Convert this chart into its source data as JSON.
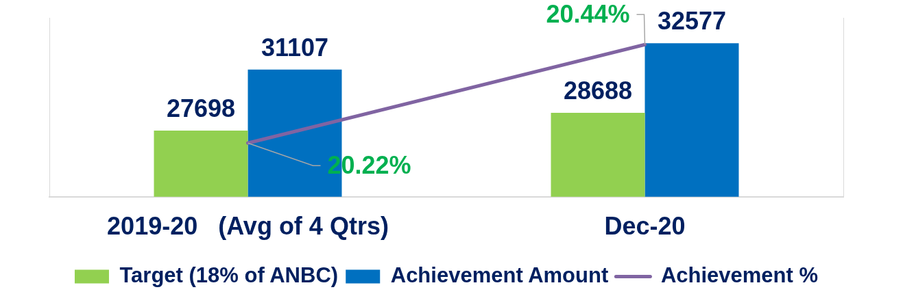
{
  "chart_data": {
    "type": "bar",
    "categories": [
      "2019-20   (Avg of 4 Qtrs)",
      "Dec-20"
    ],
    "series": [
      {
        "name": "Target (18% of ANBC)",
        "color": "#92d050",
        "values": [
          27698,
          28688
        ],
        "value_labels": [
          "27698",
          "28688"
        ]
      },
      {
        "name": "Achievement Amount",
        "color": "#0070c0",
        "values": [
          31107,
          32577
        ],
        "value_labels": [
          "31107",
          "32577"
        ]
      },
      {
        "name": "Achievement %",
        "type": "line",
        "axis": "y2",
        "color": "#8064a2",
        "values": [
          20.22,
          20.44
        ],
        "value_labels": [
          "20.22%",
          "20.44%"
        ]
      }
    ],
    "ylim": [
      24000,
      34000
    ],
    "y2lim": [
      20.1,
      20.5
    ],
    "tick_labels": "x",
    "legend": "bottom"
  }
}
